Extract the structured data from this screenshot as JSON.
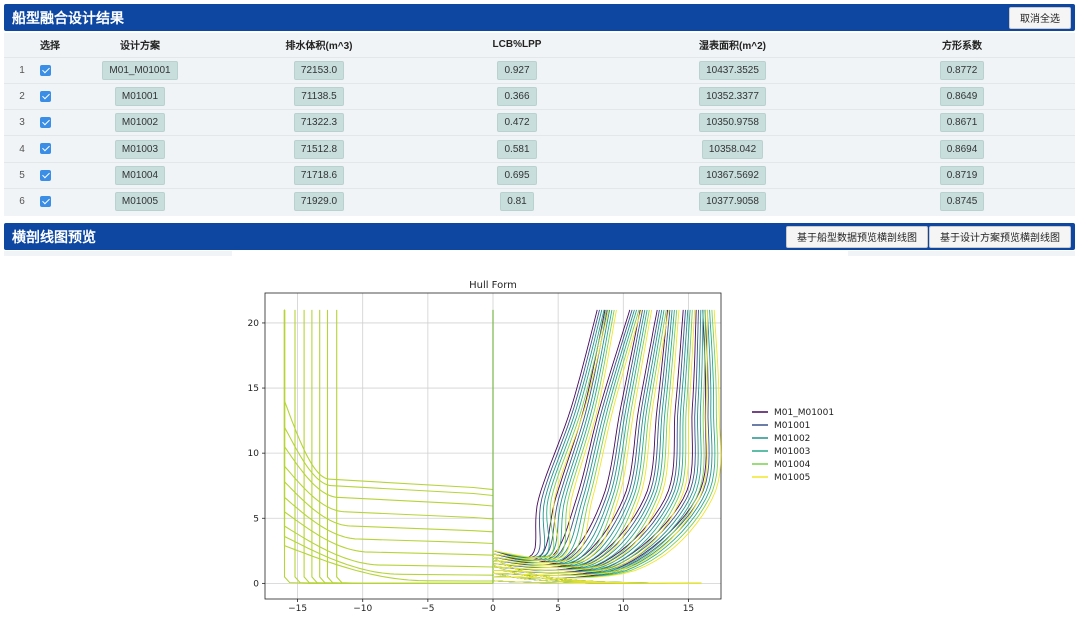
{
  "results_panel": {
    "title": "船型融合设计结果",
    "deselect_all_label": "取消全选"
  },
  "table": {
    "columns": [
      "选择",
      "设计方案",
      "排水体积(m^3)",
      "LCB%LPP",
      "湿表面积(m^2)",
      "方形系数"
    ],
    "rows": [
      {
        "index": "1",
        "checked": true,
        "scheme": "M01_M01001",
        "displacement": "72153.0",
        "lcb": "0.927",
        "wetted_area": "10437.3525",
        "block_coef": "0.8772"
      },
      {
        "index": "2",
        "checked": true,
        "scheme": "M01001",
        "displacement": "71138.5",
        "lcb": "0.366",
        "wetted_area": "10352.3377",
        "block_coef": "0.8649"
      },
      {
        "index": "3",
        "checked": true,
        "scheme": "M01002",
        "displacement": "71322.3",
        "lcb": "0.472",
        "wetted_area": "10350.9758",
        "block_coef": "0.8671"
      },
      {
        "index": "4",
        "checked": true,
        "scheme": "M01003",
        "displacement": "71512.8",
        "lcb": "0.581",
        "wetted_area": "10358.042",
        "block_coef": "0.8694"
      },
      {
        "index": "5",
        "checked": true,
        "scheme": "M01004",
        "displacement": "71718.6",
        "lcb": "0.695",
        "wetted_area": "10367.5692",
        "block_coef": "0.8719"
      },
      {
        "index": "6",
        "checked": true,
        "scheme": "M01005",
        "displacement": "71929.0",
        "lcb": "0.81",
        "wetted_area": "10377.9058",
        "block_coef": "0.8745"
      }
    ]
  },
  "preview_panel": {
    "title": "横剖线图预览",
    "btn_hull_data": "基于船型数据预览横剖线图",
    "btn_design_scheme": "基于设计方案预览横剖线图"
  },
  "chart_data": {
    "type": "line",
    "title": "Hull Form",
    "xlabel": "",
    "ylabel": "",
    "xlim": [
      -17.5,
      17.5
    ],
    "ylim": [
      -1.2,
      22.3
    ],
    "xticks": [
      -15,
      -10,
      -5,
      0,
      5,
      10,
      15
    ],
    "yticks": [
      0,
      5,
      10,
      15,
      20
    ],
    "grid": true,
    "legend_position": "right",
    "series": [
      {
        "name": "M01_M01001",
        "color": "#46085c"
      },
      {
        "name": "M01001",
        "color": "#3b528b"
      },
      {
        "name": "M01002",
        "color": "#21918c"
      },
      {
        "name": "M01003",
        "color": "#2aa88a"
      },
      {
        "name": "M01004",
        "color": "#7ad151"
      },
      {
        "name": "M01005",
        "color": "#f2e52a"
      }
    ]
  }
}
